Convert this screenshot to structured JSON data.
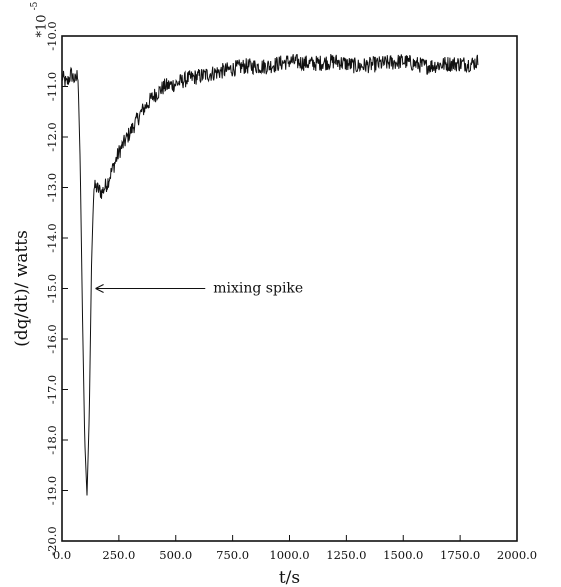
{
  "chart_data": {
    "type": "line",
    "xlabel": "t/s",
    "ylabel": "(dq/dt)/ watts",
    "y_multiplier_label": "*10",
    "y_multiplier_exponent": "-5",
    "xlim": [
      0,
      2000
    ],
    "ylim": [
      -20,
      -10
    ],
    "x_ticks": [
      "0.0",
      "250.0",
      "500.0",
      "750.0",
      "1000.0",
      "1250.0",
      "1500.0",
      "1750.0",
      "2000.0"
    ],
    "x_tick_values": [
      0,
      250,
      500,
      750,
      1000,
      1250,
      1500,
      1750,
      2000
    ],
    "y_ticks": [
      "-10.0",
      "-11.0",
      "-12.0",
      "-13.0",
      "-14.0",
      "-15.0",
      "-16.0",
      "-17.0",
      "-18.0",
      "-19.0",
      "-20.0"
    ],
    "y_tick_values": [
      -10,
      -11,
      -12,
      -13,
      -14,
      -15,
      -16,
      -17,
      -18,
      -19,
      -20
    ],
    "series": [
      {
        "x": [
          0,
          20,
          40,
          60,
          70,
          80,
          90,
          100,
          110,
          120,
          130,
          140,
          150,
          175,
          200,
          225,
          250,
          275,
          300,
          350,
          400,
          450,
          500,
          550,
          600,
          650,
          700,
          750,
          800,
          900,
          1000,
          1100,
          1200,
          1300,
          1400,
          1500,
          1600,
          1700,
          1800,
          1830
        ],
        "y": [
          -10.8,
          -10.95,
          -10.75,
          -10.9,
          -10.7,
          -12.5,
          -15.5,
          -18.0,
          -19.1,
          -17.5,
          -14.5,
          -13.0,
          -13.0,
          -13.1,
          -12.9,
          -12.6,
          -12.3,
          -12.1,
          -11.9,
          -11.5,
          -11.2,
          -11.0,
          -10.95,
          -10.85,
          -10.8,
          -10.75,
          -10.7,
          -10.65,
          -10.6,
          -10.6,
          -10.5,
          -10.55,
          -10.5,
          -10.6,
          -10.55,
          -10.5,
          -10.6,
          -10.55,
          -10.55,
          -10.5
        ],
        "noise": 0.16
      }
    ],
    "annotations": [
      {
        "text": "mixing spike",
        "x": 700,
        "y": -15.0,
        "arrow_to_x": 130,
        "arrow_to_y": -15.0
      }
    ],
    "grid": false,
    "legend": "none"
  }
}
